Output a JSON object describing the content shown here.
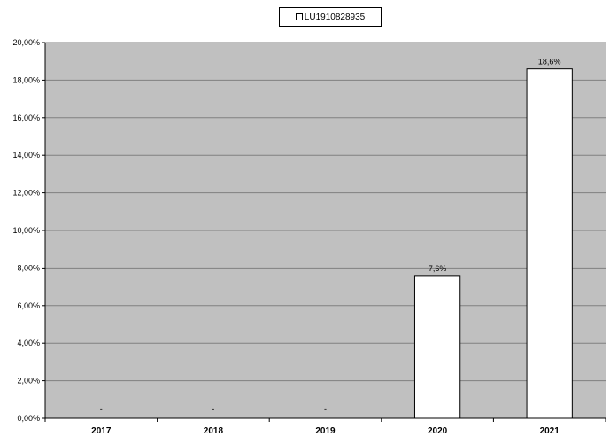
{
  "chart_data": {
    "type": "bar",
    "categories": [
      "2017",
      "2018",
      "2019",
      "2020",
      "2021"
    ],
    "series": [
      {
        "name": "LU1910828935",
        "values": [
          null,
          null,
          null,
          7.6,
          18.6
        ],
        "labels": [
          "-",
          "-",
          "-",
          "7,6%",
          "18,6%"
        ],
        "color": "#ffffff"
      }
    ],
    "ylim": [
      0,
      20
    ],
    "yticks": [
      "0,00%",
      "2,00%",
      "4,00%",
      "6,00%",
      "8,00%",
      "10,00%",
      "12,00%",
      "14,00%",
      "16,00%",
      "18,00%",
      "20,00%"
    ],
    "xlabel": "",
    "ylabel": "",
    "grid": true,
    "legend_position": "top-center",
    "plot_background": "#c0c0c0",
    "gridline_color": "#808080"
  }
}
